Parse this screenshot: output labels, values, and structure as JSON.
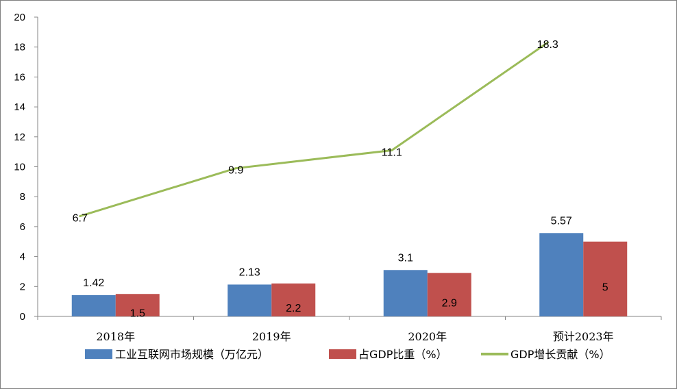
{
  "chart_data": {
    "type": "bar",
    "categories": [
      "2018年",
      "2019年",
      "2020年",
      "预计2023年"
    ],
    "series": [
      {
        "name": "工业互联网市场规模（万亿元）",
        "kind": "bar",
        "color": "#4f81bd",
        "values": [
          1.42,
          2.13,
          3.1,
          5.57
        ],
        "labels": [
          "1.42",
          "2.13",
          "3.1",
          "5.57"
        ]
      },
      {
        "name": "占GDP比重（%）",
        "kind": "bar",
        "color": "#c0504d",
        "values": [
          1.5,
          2.2,
          2.9,
          5
        ],
        "labels": [
          "1.5",
          "2.2",
          "2.9",
          "5"
        ]
      },
      {
        "name": "GDP增长贡献（%）",
        "kind": "line",
        "color": "#9bbb59",
        "values": [
          6.7,
          9.9,
          11.1,
          18.3
        ],
        "labels": [
          "6.7",
          "9.9",
          "11.1",
          "18.3"
        ]
      }
    ],
    "ylim": [
      0,
      20
    ],
    "yticks": [
      "0",
      "2",
      "4",
      "6",
      "8",
      "10",
      "12",
      "14",
      "16",
      "18",
      "20"
    ],
    "grid": false,
    "legend_position": "bottom",
    "title": "",
    "xlabel": "",
    "ylabel": ""
  }
}
